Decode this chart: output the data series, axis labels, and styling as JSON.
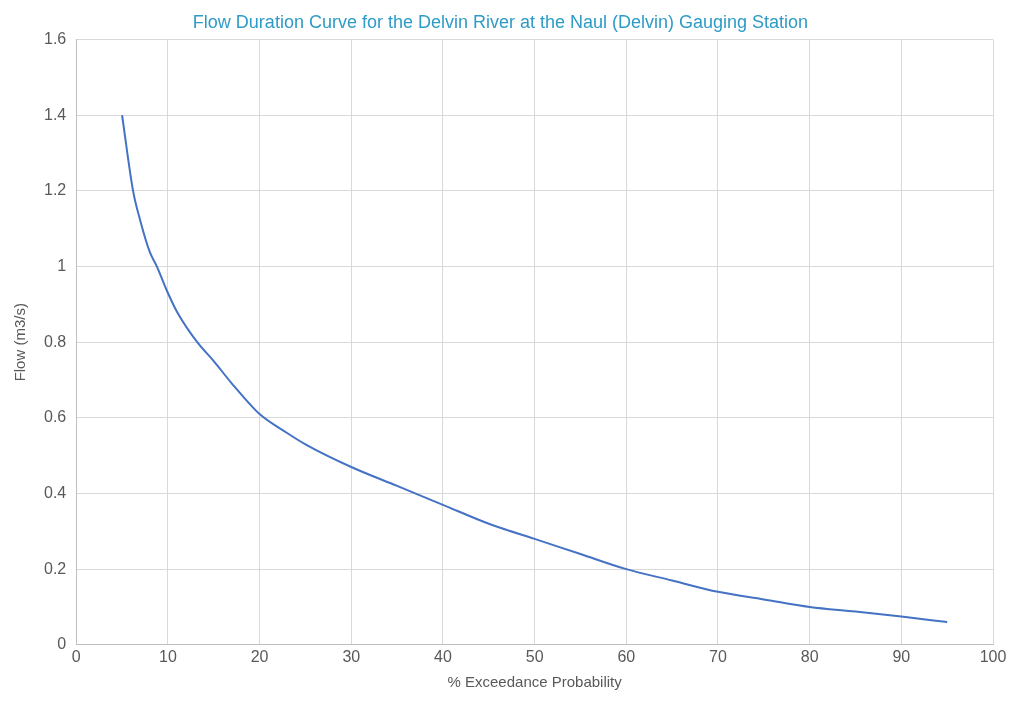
{
  "chart_data": {
    "type": "line",
    "title": "Flow Duration Curve for the Delvin River at the Naul (Delvin) Gauging Station",
    "xlabel": "% Exceedance Probability",
    "ylabel": "Flow (m3/s)",
    "x": [
      5,
      6.2,
      7,
      8,
      8.8,
      10,
      11,
      13.2,
      15,
      17,
      20,
      23,
      25,
      30,
      35,
      40,
      45,
      50,
      55,
      60,
      65,
      70,
      75,
      80,
      85,
      90,
      95
    ],
    "series": [
      {
        "color": "#4472c4",
        "values": [
          1.4,
          1.2,
          1.12,
          1.04,
          1.0,
          0.93,
          0.88,
          0.8,
          0.75,
          0.69,
          0.61,
          0.56,
          0.53,
          0.47,
          0.42,
          0.37,
          0.32,
          0.28,
          0.24,
          0.2,
          0.17,
          0.14,
          0.12,
          0.1,
          0.088,
          0.075,
          0.06
        ]
      }
    ],
    "xlim": [
      0,
      100
    ],
    "xticks": [
      0,
      10,
      20,
      30,
      40,
      50,
      60,
      70,
      80,
      90,
      100
    ],
    "ylim": [
      0,
      1.6
    ],
    "yticks": [
      0,
      0.2,
      0.4,
      0.6,
      0.8,
      1,
      1.2,
      1.4,
      1.6
    ],
    "grid": true,
    "legend": false,
    "marker": "none",
    "line_style": "solid"
  }
}
